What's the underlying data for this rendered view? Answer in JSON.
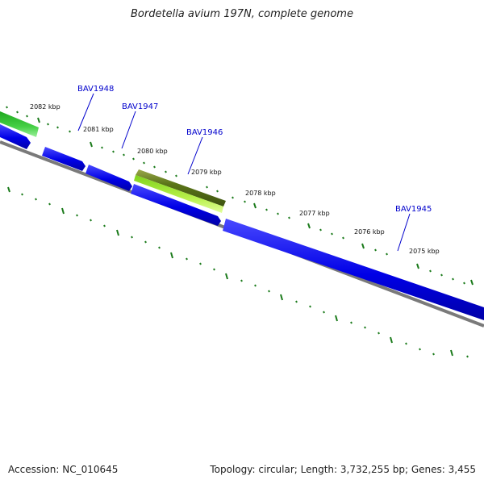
{
  "title": "Bordetella avium 197N, complete genome",
  "footer": {
    "accession": "Accession: NC_010645",
    "summary": "Topology: circular; Length: 3,732,255 bp; Genes: 3,455"
  },
  "scale_labels": [
    "2082 kbp",
    "2081 kbp",
    "2080 kbp",
    "2079 kbp",
    "2078 kbp",
    "2077 kbp",
    "2076 kbp",
    "2075 kbp"
  ],
  "gene_labels": [
    "BAV1948",
    "BAV1947",
    "BAV1946",
    "BAV1945"
  ],
  "colors": {
    "cds": "#0000e6",
    "cds_light": "#5b5bff",
    "backbone": "#777777",
    "ticks": "#1a7a1a",
    "highlight_dark": "#4f6f16",
    "highlight_light": "#b8f040",
    "green_feature": "#3cc43c",
    "label_blue": "#0000cc"
  }
}
